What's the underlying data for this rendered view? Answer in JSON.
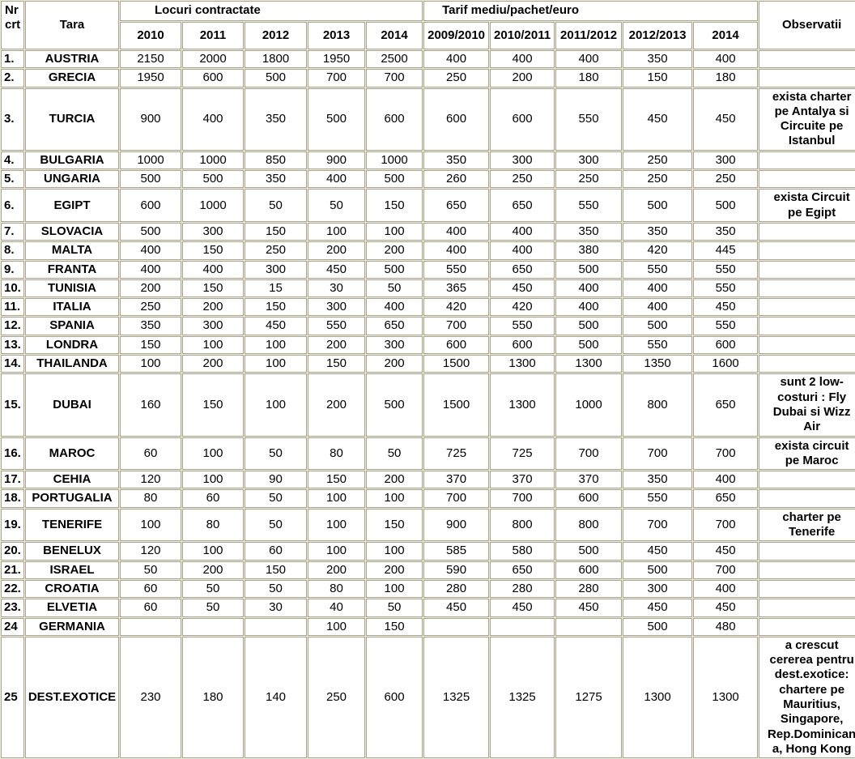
{
  "theme": {
    "page_background": "#EFECDE",
    "grid_line": "#A9A591",
    "cell_background": "#FFFFFF",
    "text_color": "#000000"
  },
  "table": {
    "header": {
      "nr": "Nr crt",
      "tara": "Tara",
      "locuri_group": "Locuri contractate",
      "tarif_group": "Tarif mediu/pachet/euro",
      "observatii": "Observatii",
      "locuri_years": [
        "2010",
        "2011",
        "2012",
        "2013",
        "2014"
      ],
      "tarif_years": [
        "2009/2010",
        "2010/2011",
        "2011/2012",
        "2012/2013",
        "2014"
      ]
    },
    "rows": [
      {
        "nr": "1.",
        "tara": "AUSTRIA",
        "locuri": [
          2150,
          2000,
          1800,
          1950,
          2500
        ],
        "tarif": [
          400,
          400,
          400,
          350,
          400
        ],
        "obs": ""
      },
      {
        "nr": "2.",
        "tara": "GRECIA",
        "locuri": [
          1950,
          600,
          500,
          700,
          700
        ],
        "tarif": [
          250,
          200,
          180,
          150,
          180
        ],
        "obs": ""
      },
      {
        "nr": "3.",
        "tara": "TURCIA",
        "locuri": [
          900,
          400,
          350,
          500,
          600
        ],
        "tarif": [
          600,
          600,
          550,
          450,
          450
        ],
        "obs": "exista charter pe Antalya si Circuite pe Istanbul"
      },
      {
        "nr": "4.",
        "tara": "BULGARIA",
        "locuri": [
          1000,
          1000,
          850,
          900,
          1000
        ],
        "tarif": [
          350,
          300,
          300,
          250,
          300
        ],
        "obs": ""
      },
      {
        "nr": "5.",
        "tara": "UNGARIA",
        "locuri": [
          500,
          500,
          350,
          400,
          500
        ],
        "tarif": [
          260,
          250,
          250,
          250,
          250
        ],
        "obs": ""
      },
      {
        "nr": "6.",
        "tara": "EGIPT",
        "locuri": [
          600,
          1000,
          50,
          50,
          150
        ],
        "tarif": [
          650,
          650,
          550,
          500,
          500
        ],
        "obs": "exista Circuit pe Egipt"
      },
      {
        "nr": "7.",
        "tara": "SLOVACIA",
        "locuri": [
          500,
          300,
          150,
          100,
          100
        ],
        "tarif": [
          400,
          400,
          350,
          350,
          350
        ],
        "obs": ""
      },
      {
        "nr": "8.",
        "tara": "MALTA",
        "locuri": [
          400,
          150,
          250,
          200,
          200
        ],
        "tarif": [
          400,
          400,
          380,
          420,
          445
        ],
        "obs": ""
      },
      {
        "nr": "9.",
        "tara": "FRANTA",
        "locuri": [
          400,
          400,
          300,
          450,
          500
        ],
        "tarif": [
          550,
          650,
          500,
          550,
          550
        ],
        "obs": ""
      },
      {
        "nr": "10.",
        "tara": "TUNISIA",
        "locuri": [
          200,
          150,
          15,
          30,
          50
        ],
        "tarif": [
          365,
          450,
          400,
          400,
          550
        ],
        "obs": ""
      },
      {
        "nr": "11.",
        "tara": "ITALIA",
        "locuri": [
          250,
          200,
          150,
          300,
          400
        ],
        "tarif": [
          420,
          420,
          400,
          400,
          450
        ],
        "obs": ""
      },
      {
        "nr": "12.",
        "tara": "SPANIA",
        "locuri": [
          350,
          300,
          450,
          550,
          650
        ],
        "tarif": [
          700,
          550,
          500,
          500,
          550
        ],
        "obs": ""
      },
      {
        "nr": "13.",
        "tara": "LONDRA",
        "locuri": [
          150,
          100,
          100,
          200,
          300
        ],
        "tarif": [
          600,
          600,
          500,
          550,
          600
        ],
        "obs": ""
      },
      {
        "nr": "14.",
        "tara": "THAILANDA",
        "locuri": [
          100,
          200,
          100,
          150,
          200
        ],
        "tarif": [
          1500,
          1300,
          1300,
          1350,
          1600
        ],
        "obs": ""
      },
      {
        "nr": "15.",
        "tara": "DUBAI",
        "locuri": [
          160,
          150,
          100,
          200,
          500
        ],
        "tarif": [
          1500,
          1300,
          1000,
          800,
          650
        ],
        "obs": "sunt 2 low-costuri : Fly Dubai si Wizz Air"
      },
      {
        "nr": "16.",
        "tara": "MAROC",
        "locuri": [
          60,
          100,
          50,
          80,
          50
        ],
        "tarif": [
          725,
          725,
          700,
          700,
          700
        ],
        "obs": "exista circuit pe Maroc"
      },
      {
        "nr": "17.",
        "tara": "CEHIA",
        "locuri": [
          120,
          100,
          90,
          150,
          200
        ],
        "tarif": [
          370,
          370,
          370,
          350,
          400
        ],
        "obs": ""
      },
      {
        "nr": "18.",
        "tara": "PORTUGALIA",
        "locuri": [
          80,
          60,
          50,
          100,
          100
        ],
        "tarif": [
          700,
          700,
          600,
          550,
          650
        ],
        "obs": ""
      },
      {
        "nr": "19.",
        "tara": "TENERIFE",
        "locuri": [
          100,
          80,
          50,
          100,
          150
        ],
        "tarif": [
          900,
          800,
          800,
          700,
          700
        ],
        "obs": "charter pe Tenerife"
      },
      {
        "nr": "20.",
        "tara": "BENELUX",
        "locuri": [
          120,
          100,
          60,
          100,
          100
        ],
        "tarif": [
          585,
          580,
          500,
          450,
          450
        ],
        "obs": ""
      },
      {
        "nr": "21.",
        "tara": "ISRAEL",
        "locuri": [
          50,
          200,
          150,
          200,
          200
        ],
        "tarif": [
          590,
          650,
          600,
          500,
          700
        ],
        "obs": ""
      },
      {
        "nr": "22.",
        "tara": "CROATIA",
        "locuri": [
          60,
          50,
          50,
          80,
          100
        ],
        "tarif": [
          280,
          280,
          280,
          300,
          400
        ],
        "obs": ""
      },
      {
        "nr": "23.",
        "tara": "ELVETIA",
        "locuri": [
          60,
          50,
          30,
          40,
          50
        ],
        "tarif": [
          450,
          450,
          450,
          450,
          450
        ],
        "obs": ""
      },
      {
        "nr": "24",
        "tara": "GERMANIA",
        "locuri": [
          "",
          "",
          "",
          100,
          150
        ],
        "tarif": [
          "",
          "",
          "",
          500,
          480
        ],
        "obs": ""
      },
      {
        "nr": "25",
        "tara": "DEST.EXOTICE",
        "locuri": [
          230,
          180,
          140,
          250,
          600
        ],
        "tarif": [
          1325,
          1325,
          1275,
          1300,
          1300
        ],
        "obs": "a crescut cererea pentru dest.exotice: chartere pe Mauritius, Singapore, Rep.Dominicana, Hong Kong"
      }
    ]
  }
}
